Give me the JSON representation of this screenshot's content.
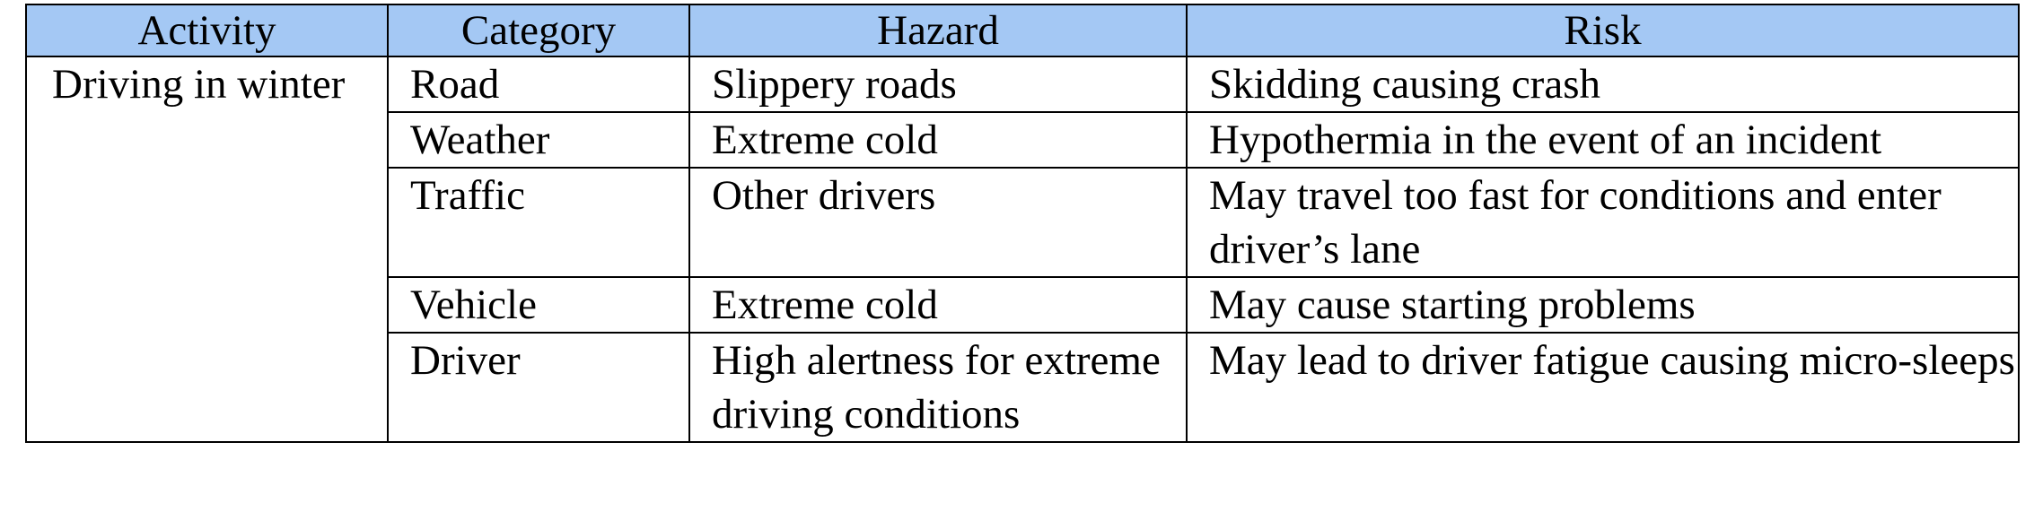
{
  "header_colors": {
    "background": "#a4c8f4"
  },
  "table": {
    "columns": [
      "Activity",
      "Category",
      "Hazard",
      "Risk"
    ],
    "activity": "Driving in winter",
    "rows": [
      {
        "category": "Road",
        "hazard": "Slippery roads",
        "risk": "Skidding causing crash"
      },
      {
        "category": "Weather",
        "hazard": "Extreme cold",
        "risk": "Hypothermia in the event of an incident"
      },
      {
        "category": "Traffic",
        "hazard": "Other drivers",
        "risk": "May travel too fast for conditions and enter driver’s lane"
      },
      {
        "category": "Vehicle",
        "hazard": "Extreme cold",
        "risk": "May cause starting problems"
      },
      {
        "category": "Driver",
        "hazard": "High alertness for extreme driving conditions",
        "risk": "May lead to driver fatigue causing micro-sleeps"
      }
    ]
  }
}
